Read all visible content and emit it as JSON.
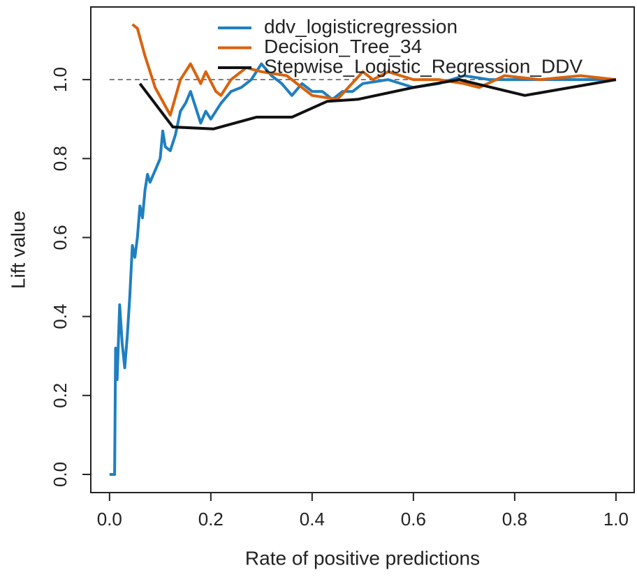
{
  "chart_data": {
    "type": "line",
    "xlabel": "Rate of positive predictions",
    "ylabel": "Lift value",
    "xlim": [
      -0.037,
      1.036
    ],
    "ylim": [
      -0.046,
      1.184
    ],
    "xticks": [
      {
        "value": 0,
        "label": "0.0"
      },
      {
        "value": 0.2,
        "label": "0.2"
      },
      {
        "value": 0.4,
        "label": "0.4"
      },
      {
        "value": 0.6,
        "label": "0.6"
      },
      {
        "value": 0.8,
        "label": "0.8"
      },
      {
        "value": 1,
        "label": "1.0"
      }
    ],
    "yticks": [
      {
        "value": 0,
        "label": "0.0"
      },
      {
        "value": 0.2,
        "label": "0.2"
      },
      {
        "value": 0.4,
        "label": "0.4"
      },
      {
        "value": 0.6,
        "label": "0.6"
      },
      {
        "value": 0.8,
        "label": "0.8"
      },
      {
        "value": 1,
        "label": "1.0"
      }
    ],
    "reference_y": 1,
    "legend": "top",
    "series": [
      {
        "name": "ddv_logisticregression",
        "color": "#1f7fc0",
        "x": [
          0,
          0.01,
          0.012,
          0.015,
          0.02,
          0.025,
          0.03,
          0.035,
          0.04,
          0.045,
          0.05,
          0.055,
          0.06,
          0.065,
          0.07,
          0.075,
          0.08,
          0.09,
          0.1,
          0.105,
          0.11,
          0.12,
          0.13,
          0.14,
          0.15,
          0.16,
          0.17,
          0.18,
          0.19,
          0.2,
          0.22,
          0.24,
          0.26,
          0.28,
          0.3,
          0.32,
          0.34,
          0.36,
          0.38,
          0.4,
          0.42,
          0.44,
          0.46,
          0.48,
          0.5,
          0.55,
          0.6,
          0.65,
          0.7,
          0.75,
          0.8,
          0.85,
          0.9,
          0.95,
          1
        ],
        "values": [
          0,
          0,
          0.32,
          0.24,
          0.43,
          0.33,
          0.27,
          0.35,
          0.45,
          0.58,
          0.55,
          0.6,
          0.68,
          0.65,
          0.72,
          0.76,
          0.74,
          0.77,
          0.8,
          0.87,
          0.83,
          0.82,
          0.86,
          0.92,
          0.94,
          0.97,
          0.93,
          0.89,
          0.92,
          0.9,
          0.94,
          0.97,
          0.98,
          1,
          1.04,
          1.01,
          0.99,
          0.96,
          0.99,
          0.97,
          0.97,
          0.95,
          0.97,
          0.97,
          0.99,
          1,
          0.98,
          0.99,
          1.01,
          1,
          1,
          1,
          1,
          1,
          1
        ]
      },
      {
        "name": "Decision_Tree_34",
        "color": "#d9620c",
        "x": [
          0.045,
          0.055,
          0.07,
          0.09,
          0.12,
          0.14,
          0.16,
          0.18,
          0.19,
          0.21,
          0.22,
          0.24,
          0.27,
          0.3,
          0.35,
          0.4,
          0.45,
          0.5,
          0.52,
          0.55,
          0.6,
          0.65,
          0.7,
          0.73,
          0.78,
          0.85,
          0.93,
          1
        ],
        "values": [
          1.14,
          1.13,
          1.06,
          0.98,
          0.91,
          1,
          1.04,
          0.99,
          1.02,
          0.97,
          0.96,
          1,
          1.03,
          1.02,
          1.01,
          0.96,
          0.95,
          1.02,
          1,
          1.02,
          1,
          1,
          0.99,
          0.98,
          1.01,
          1,
          1.01,
          1
        ]
      },
      {
        "name": "Stepwise_Logistic_Regression_DDV",
        "color": "#111111",
        "x": [
          0.06,
          0.125,
          0.205,
          0.29,
          0.36,
          0.43,
          0.49,
          0.6,
          0.69,
          0.82,
          1
        ],
        "values": [
          0.99,
          0.88,
          0.875,
          0.905,
          0.905,
          0.945,
          0.95,
          0.98,
          1,
          0.96,
          1
        ]
      }
    ]
  }
}
